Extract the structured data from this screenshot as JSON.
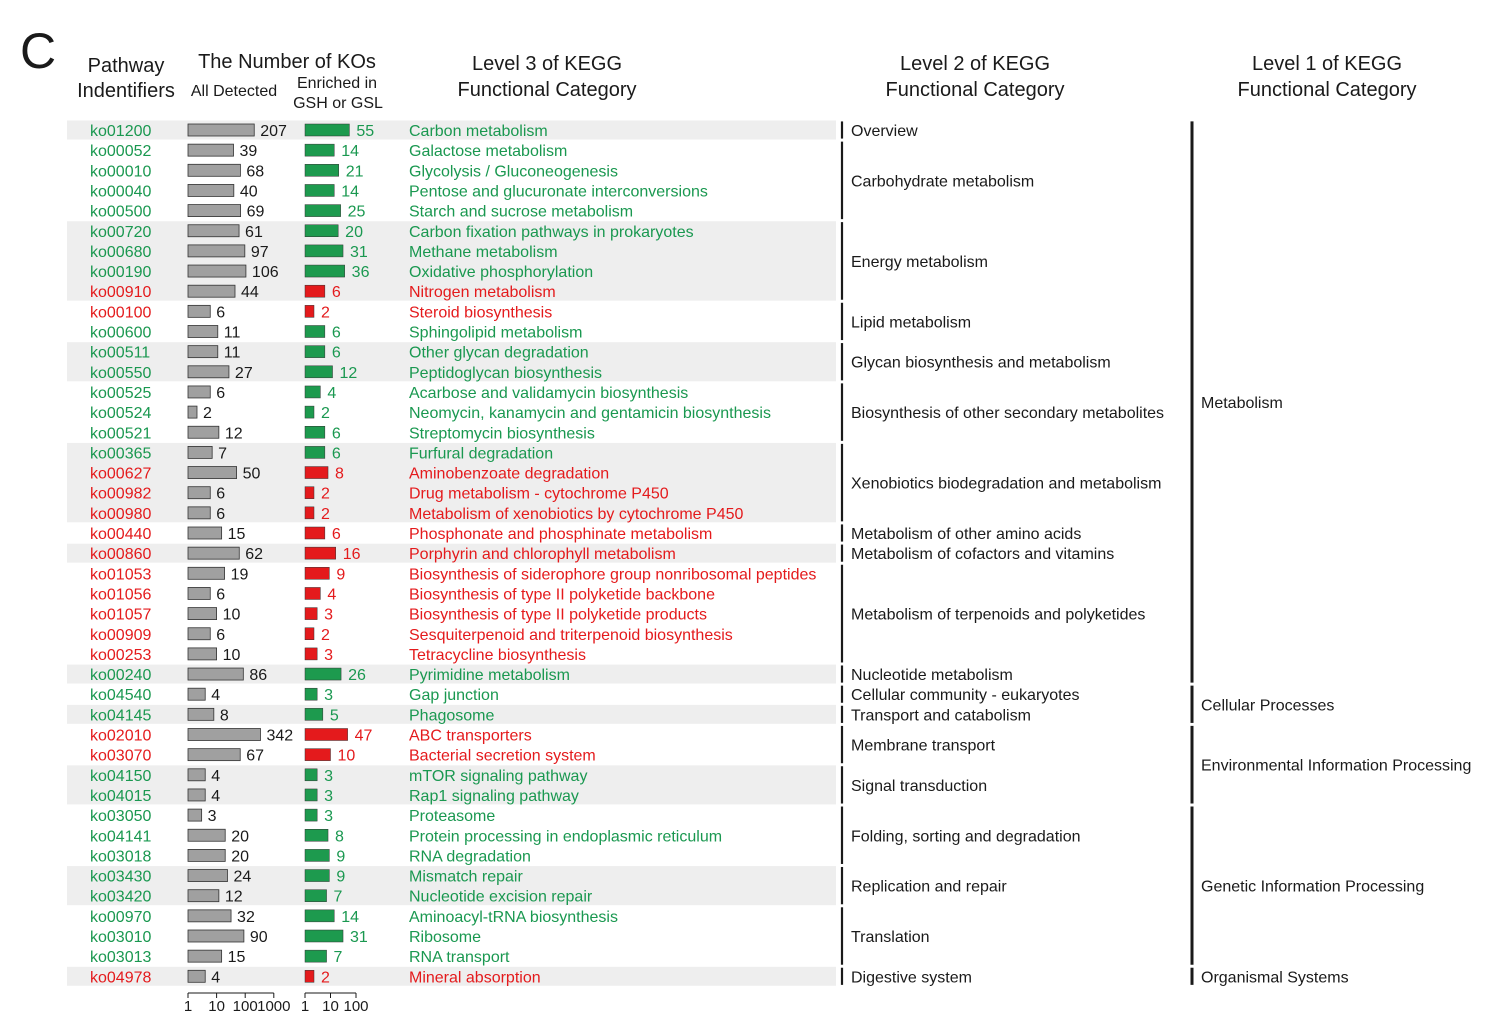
{
  "panel_label": "C",
  "headers": {
    "pathway_l1": "Pathway",
    "pathway_l2": "Indentifiers",
    "number_title": "The Number of KOs",
    "all_detected": "All Detected",
    "enriched_l1": "Enriched in",
    "enriched_l2": "GSH or GSL",
    "level3_l1": "Level 3 of KEGG",
    "level3_l2": "Functional Category",
    "level2_l1": "Level 2 of KEGG",
    "level2_l2": "Functional Category",
    "level1_l1": "Level 1 of KEGG",
    "level1_l2": "Functional Category"
  },
  "colors": {
    "green": "#1a9850",
    "red": "#e41a1c",
    "gray_bar": "#a0a0a0",
    "green_bar": "#1d9a4e",
    "red_bar": "#e41a1c",
    "shade": "#eeeeee",
    "text": "#1a1a1a"
  },
  "chart_data": {
    "type": "bar",
    "scale": "log",
    "axes": {
      "all_detected": {
        "ticks": [
          "1",
          "10",
          "100",
          "1000"
        ],
        "range": [
          1,
          1000
        ]
      },
      "enriched": {
        "ticks": [
          "1",
          "10",
          "100"
        ],
        "range": [
          1,
          100
        ]
      }
    },
    "rows": [
      {
        "id": "ko01200",
        "all": 207,
        "enriched": 55,
        "name": "Carbon metabolism",
        "color": "green"
      },
      {
        "id": "ko00052",
        "all": 39,
        "enriched": 14,
        "name": "Galactose metabolism",
        "color": "green"
      },
      {
        "id": "ko00010",
        "all": 68,
        "enriched": 21,
        "name": "Glycolysis / Gluconeogenesis",
        "color": "green"
      },
      {
        "id": "ko00040",
        "all": 40,
        "enriched": 14,
        "name": "Pentose and glucuronate interconversions",
        "color": "green"
      },
      {
        "id": "ko00500",
        "all": 69,
        "enriched": 25,
        "name": "Starch and sucrose metabolism",
        "color": "green"
      },
      {
        "id": "ko00720",
        "all": 61,
        "enriched": 20,
        "name": "Carbon fixation pathways in prokaryotes",
        "color": "green"
      },
      {
        "id": "ko00680",
        "all": 97,
        "enriched": 31,
        "name": "Methane metabolism",
        "color": "green"
      },
      {
        "id": "ko00190",
        "all": 106,
        "enriched": 36,
        "name": "Oxidative phosphorylation",
        "color": "green"
      },
      {
        "id": "ko00910",
        "all": 44,
        "enriched": 6,
        "name": "Nitrogen metabolism",
        "color": "red"
      },
      {
        "id": "ko00100",
        "all": 6,
        "enriched": 2,
        "name": "Steroid biosynthesis",
        "color": "red"
      },
      {
        "id": "ko00600",
        "all": 11,
        "enriched": 6,
        "name": "Sphingolipid metabolism",
        "color": "green"
      },
      {
        "id": "ko00511",
        "all": 11,
        "enriched": 6,
        "name": "Other glycan degradation",
        "color": "green"
      },
      {
        "id": "ko00550",
        "all": 27,
        "enriched": 12,
        "name": "Peptidoglycan biosynthesis",
        "color": "green"
      },
      {
        "id": "ko00525",
        "all": 6,
        "enriched": 4,
        "name": "Acarbose and validamycin biosynthesis",
        "color": "green"
      },
      {
        "id": "ko00524",
        "all": 2,
        "enriched": 2,
        "name": "Neomycin, kanamycin and gentamicin biosynthesis",
        "color": "green"
      },
      {
        "id": "ko00521",
        "all": 12,
        "enriched": 6,
        "name": "Streptomycin biosynthesis",
        "color": "green"
      },
      {
        "id": "ko00365",
        "all": 7,
        "enriched": 6,
        "name": "Furfural degradation",
        "color": "green"
      },
      {
        "id": "ko00627",
        "all": 50,
        "enriched": 8,
        "name": "Aminobenzoate degradation",
        "color": "red"
      },
      {
        "id": "ko00982",
        "all": 6,
        "enriched": 2,
        "name": "Drug metabolism - cytochrome P450",
        "color": "red"
      },
      {
        "id": "ko00980",
        "all": 6,
        "enriched": 2,
        "name": "Metabolism of xenobiotics by cytochrome P450",
        "color": "red"
      },
      {
        "id": "ko00440",
        "all": 15,
        "enriched": 6,
        "name": "Phosphonate and phosphinate metabolism",
        "color": "red"
      },
      {
        "id": "ko00860",
        "all": 62,
        "enriched": 16,
        "name": "Porphyrin and chlorophyll metabolism",
        "color": "red"
      },
      {
        "id": "ko01053",
        "all": 19,
        "enriched": 9,
        "name": "Biosynthesis of siderophore group nonribosomal peptides",
        "color": "red"
      },
      {
        "id": "ko01056",
        "all": 6,
        "enriched": 4,
        "name": "Biosynthesis of type II polyketide backbone",
        "color": "red"
      },
      {
        "id": "ko01057",
        "all": 10,
        "enriched": 3,
        "name": "Biosynthesis of type II polyketide products",
        "color": "red"
      },
      {
        "id": "ko00909",
        "all": 6,
        "enriched": 2,
        "name": "Sesquiterpenoid and triterpenoid biosynthesis",
        "color": "red"
      },
      {
        "id": "ko00253",
        "all": 10,
        "enriched": 3,
        "name": "Tetracycline biosynthesis",
        "color": "red"
      },
      {
        "id": "ko00240",
        "all": 86,
        "enriched": 26,
        "name": "Pyrimidine metabolism",
        "color": "green"
      },
      {
        "id": "ko04540",
        "all": 4,
        "enriched": 3,
        "name": "Gap junction",
        "color": "green"
      },
      {
        "id": "ko04145",
        "all": 8,
        "enriched": 5,
        "name": "Phagosome",
        "color": "green"
      },
      {
        "id": "ko02010",
        "all": 342,
        "enriched": 47,
        "name": "ABC transporters",
        "color": "red"
      },
      {
        "id": "ko03070",
        "all": 67,
        "enriched": 10,
        "name": "Bacterial secretion system",
        "color": "red"
      },
      {
        "id": "ko04150",
        "all": 4,
        "enriched": 3,
        "name": "mTOR signaling pathway",
        "color": "green"
      },
      {
        "id": "ko04015",
        "all": 4,
        "enriched": 3,
        "name": "Rap1 signaling pathway",
        "color": "green"
      },
      {
        "id": "ko03050",
        "all": 3,
        "enriched": 3,
        "name": "Proteasome",
        "color": "green"
      },
      {
        "id": "ko04141",
        "all": 20,
        "enriched": 8,
        "name": "Protein processing in endoplasmic reticulum",
        "color": "green"
      },
      {
        "id": "ko03018",
        "all": 20,
        "enriched": 9,
        "name": "RNA degradation",
        "color": "green"
      },
      {
        "id": "ko03430",
        "all": 24,
        "enriched": 9,
        "name": "Mismatch repair",
        "color": "green"
      },
      {
        "id": "ko03420",
        "all": 12,
        "enriched": 7,
        "name": "Nucleotide excision repair",
        "color": "green"
      },
      {
        "id": "ko00970",
        "all": 32,
        "enriched": 14,
        "name": "Aminoacyl-tRNA biosynthesis",
        "color": "green"
      },
      {
        "id": "ko03010",
        "all": 90,
        "enriched": 31,
        "name": "Ribosome",
        "color": "green"
      },
      {
        "id": "ko03013",
        "all": 15,
        "enriched": 7,
        "name": "RNA transport",
        "color": "green"
      },
      {
        "id": "ko04978",
        "all": 4,
        "enriched": 2,
        "name": "Mineral absorption",
        "color": "red"
      }
    ],
    "level2": [
      {
        "name": "Overview",
        "start": 0,
        "end": 0
      },
      {
        "name": "Carbohydrate metabolism",
        "start": 1,
        "end": 4
      },
      {
        "name": "Energy metabolism",
        "start": 5,
        "end": 8
      },
      {
        "name": "Lipid metabolism",
        "start": 9,
        "end": 10
      },
      {
        "name": "Glycan biosynthesis and metabolism",
        "start": 11,
        "end": 12
      },
      {
        "name": "Biosynthesis of other secondary metabolites",
        "start": 13,
        "end": 15
      },
      {
        "name": "Xenobiotics biodegradation and metabolism",
        "start": 16,
        "end": 19
      },
      {
        "name": "Metabolism of other amino acids",
        "start": 20,
        "end": 20
      },
      {
        "name": "Metabolism of cofactors and vitamins",
        "start": 21,
        "end": 21
      },
      {
        "name": "Metabolism of terpenoids and polyketides",
        "start": 22,
        "end": 26
      },
      {
        "name": "Nucleotide metabolism",
        "start": 27,
        "end": 27
      },
      {
        "name": "Cellular community - eukaryotes",
        "start": 28,
        "end": 28
      },
      {
        "name": "Transport and catabolism",
        "start": 29,
        "end": 29
      },
      {
        "name": "Membrane transport",
        "start": 30,
        "end": 31
      },
      {
        "name": "Signal transduction",
        "start": 32,
        "end": 33
      },
      {
        "name": "Folding, sorting and degradation",
        "start": 34,
        "end": 36
      },
      {
        "name": "Replication and repair",
        "start": 37,
        "end": 38
      },
      {
        "name": "Translation",
        "start": 39,
        "end": 41
      },
      {
        "name": "Digestive system",
        "start": 42,
        "end": 42
      }
    ],
    "level1": [
      {
        "name": "Metabolism",
        "start": 0,
        "end": 27
      },
      {
        "name": "Cellular Processes",
        "start": 28,
        "end": 29
      },
      {
        "name": "Environmental Information Processing",
        "start": 30,
        "end": 33
      },
      {
        "name": "Genetic Information Processing",
        "start": 34,
        "end": 41
      },
      {
        "name": "Organismal Systems",
        "start": 42,
        "end": 42
      }
    ]
  }
}
